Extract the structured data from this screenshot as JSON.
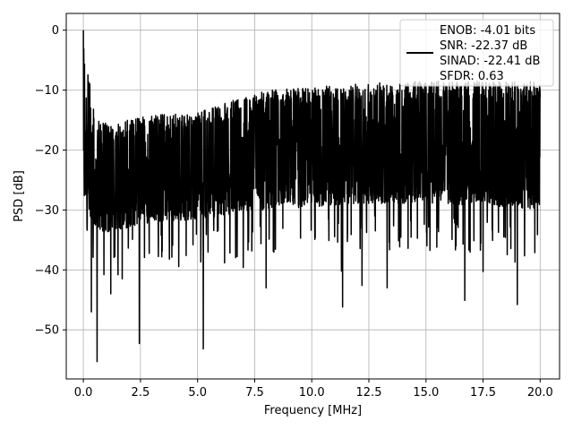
{
  "chart_data": {
    "type": "line",
    "title": "",
    "xlabel": "Frequency [MHz]",
    "ylabel": "PSD [dB]",
    "xlim": [
      -0.75,
      20.85
    ],
    "ylim": [
      -58.2,
      2.8
    ],
    "grid": true,
    "legend_position": "top-right",
    "x_ticks": [
      0.0,
      2.5,
      5.0,
      7.5,
      10.0,
      12.5,
      15.0,
      17.5,
      20.0
    ],
    "x_tick_labels": [
      "0.0",
      "2.5",
      "5.0",
      "7.5",
      "10.0",
      "12.5",
      "15.0",
      "17.5",
      "20.0"
    ],
    "y_ticks": [
      0,
      -10,
      -20,
      -30,
      -40,
      -50
    ],
    "y_tick_labels": [
      "0",
      "−10",
      "−20",
      "−30",
      "−40",
      "−50"
    ],
    "legend": {
      "line_color": "#000000",
      "entries": [
        "ENOB: -4.01 bits",
        "SNR: -22.37 dB",
        "SINAD: -22.41 dB",
        "SFDR: 0.63"
      ]
    },
    "series": [
      {
        "color": "#000000",
        "x_start": 0.0,
        "x_end": 20.0,
        "peak": {
          "x": 0.02,
          "y": 0.0
        },
        "notable_dips": [
          {
            "x": 0.6,
            "y": -55.3
          },
          {
            "x": 2.45,
            "y": -52.3
          },
          {
            "x": 5.25,
            "y": -53.2
          },
          {
            "x": 0.35,
            "y": -47.0
          },
          {
            "x": 11.35,
            "y": -46.2
          },
          {
            "x": 16.7,
            "y": -45.1
          },
          {
            "x": 19.0,
            "y": -45.8
          },
          {
            "x": 1.2,
            "y": -44.0
          },
          {
            "x": 8.0,
            "y": -43.0
          },
          {
            "x": 12.2,
            "y": -42.6
          },
          {
            "x": 13.3,
            "y": -43.0
          },
          {
            "x": 0.9,
            "y": -40.8
          },
          {
            "x": 1.7,
            "y": -41.5
          },
          {
            "x": 17.5,
            "y": -40.3
          },
          {
            "x": 18.9,
            "y": -38.7
          },
          {
            "x": 7.0,
            "y": -39.6
          },
          {
            "x": 11.3,
            "y": -40.2
          },
          {
            "x": 4.5,
            "y": -37.6
          }
        ],
        "envelope": [
          {
            "x": 0.0,
            "upper": 0.0,
            "lower": -28.0
          },
          {
            "x": 0.5,
            "upper": -14.5,
            "lower": -33.0
          },
          {
            "x": 1.0,
            "upper": -15.5,
            "lower": -34.0
          },
          {
            "x": 2.0,
            "upper": -15.0,
            "lower": -33.0
          },
          {
            "x": 3.0,
            "upper": -14.0,
            "lower": -32.0
          },
          {
            "x": 4.0,
            "upper": -14.0,
            "lower": -32.0
          },
          {
            "x": 5.0,
            "upper": -13.5,
            "lower": -31.5
          },
          {
            "x": 6.0,
            "upper": -12.5,
            "lower": -31.0
          },
          {
            "x": 7.0,
            "upper": -11.0,
            "lower": -30.5
          },
          {
            "x": 8.0,
            "upper": -10.0,
            "lower": -30.0
          },
          {
            "x": 10.0,
            "upper": -9.5,
            "lower": -29.5
          },
          {
            "x": 12.0,
            "upper": -9.0,
            "lower": -29.0
          },
          {
            "x": 14.0,
            "upper": -8.5,
            "lower": -29.0
          },
          {
            "x": 16.0,
            "upper": -8.5,
            "lower": -29.0
          },
          {
            "x": 18.0,
            "upper": -8.5,
            "lower": -29.5
          },
          {
            "x": 20.0,
            "upper": -8.5,
            "lower": -30.0
          }
        ]
      }
    ]
  }
}
